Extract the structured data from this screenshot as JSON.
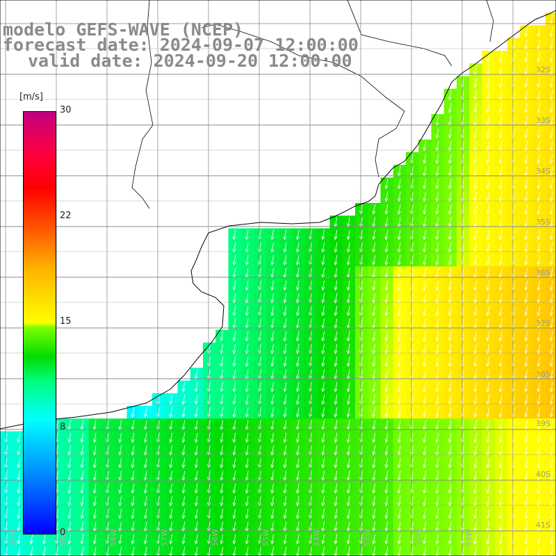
{
  "title": {
    "line1": "modelo GEFS-WAVE (NCEP)",
    "line2": "forecast date: 2024-09-07 12:00:00",
    "line3": "valid date: 2024-09-20 12:00:00"
  },
  "colorbar": {
    "unit": "[m/s]",
    "ticks": [
      "30",
      "22",
      "15",
      "8",
      "0"
    ],
    "min": 0,
    "max": 30,
    "colors": [
      "#0000ff",
      "#00ffff",
      "#00dd00",
      "#ffff00",
      "#ff0000",
      "#c0007f"
    ]
  },
  "latitude_labels": [
    "32S",
    "33S",
    "34S",
    "35S",
    "36S",
    "37S",
    "38S",
    "39S",
    "40S",
    "41S"
  ],
  "longitude_labels": [
    "60W",
    "59W",
    "58W",
    "57W",
    "56W",
    "55W",
    "54W",
    "53W",
    "52W",
    "51W"
  ],
  "map": {
    "field": "wind speed",
    "region": "Rio de la Plata / South Atlantic",
    "land_color": "#ffffff",
    "coastline_color": "#000000",
    "grid_color": "#808080",
    "arrow_color": "#ffffff",
    "wind_direction": "from north-northeast"
  }
}
